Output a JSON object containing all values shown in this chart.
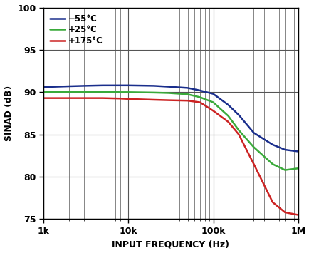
{
  "title": "",
  "xlabel": "INPUT FREQUENCY (Hz)",
  "ylabel": "SINAD (dB)",
  "xlim": [
    1000,
    1000000
  ],
  "ylim": [
    75,
    100
  ],
  "yticks": [
    75,
    80,
    85,
    90,
    95,
    100
  ],
  "series": [
    {
      "label": "−55°C",
      "color": "#1a2e8c",
      "x": [
        1000,
        2000,
        3000,
        5000,
        8000,
        10000,
        20000,
        30000,
        50000,
        70000,
        100000,
        150000,
        200000,
        300000,
        500000,
        700000,
        1000000
      ],
      "y": [
        90.6,
        90.7,
        90.75,
        90.8,
        90.8,
        90.8,
        90.75,
        90.65,
        90.5,
        90.2,
        89.8,
        88.5,
        87.3,
        85.2,
        83.8,
        83.2,
        83.0
      ]
    },
    {
      "label": "+25°C",
      "color": "#3aaa3a",
      "x": [
        1000,
        2000,
        3000,
        5000,
        8000,
        10000,
        20000,
        30000,
        50000,
        70000,
        100000,
        150000,
        200000,
        300000,
        500000,
        700000,
        1000000
      ],
      "y": [
        90.0,
        90.05,
        90.05,
        90.05,
        90.0,
        90.0,
        89.95,
        89.9,
        89.75,
        89.4,
        88.8,
        87.2,
        85.5,
        83.5,
        81.5,
        80.8,
        81.0
      ]
    },
    {
      "label": "+175°C",
      "color": "#cc2222",
      "x": [
        1000,
        2000,
        3000,
        5000,
        8000,
        10000,
        20000,
        30000,
        50000,
        70000,
        100000,
        150000,
        200000,
        300000,
        500000,
        700000,
        1000000
      ],
      "y": [
        89.3,
        89.3,
        89.3,
        89.3,
        89.25,
        89.2,
        89.1,
        89.05,
        89.0,
        88.8,
        87.8,
        86.5,
        85.0,
        81.5,
        77.0,
        75.8,
        75.5
      ]
    }
  ],
  "legend_loc": "upper left",
  "grid_color": "#555555",
  "minor_grid_color": "#aaaaaa",
  "line_width": 1.8,
  "bg_color": "#ffffff"
}
